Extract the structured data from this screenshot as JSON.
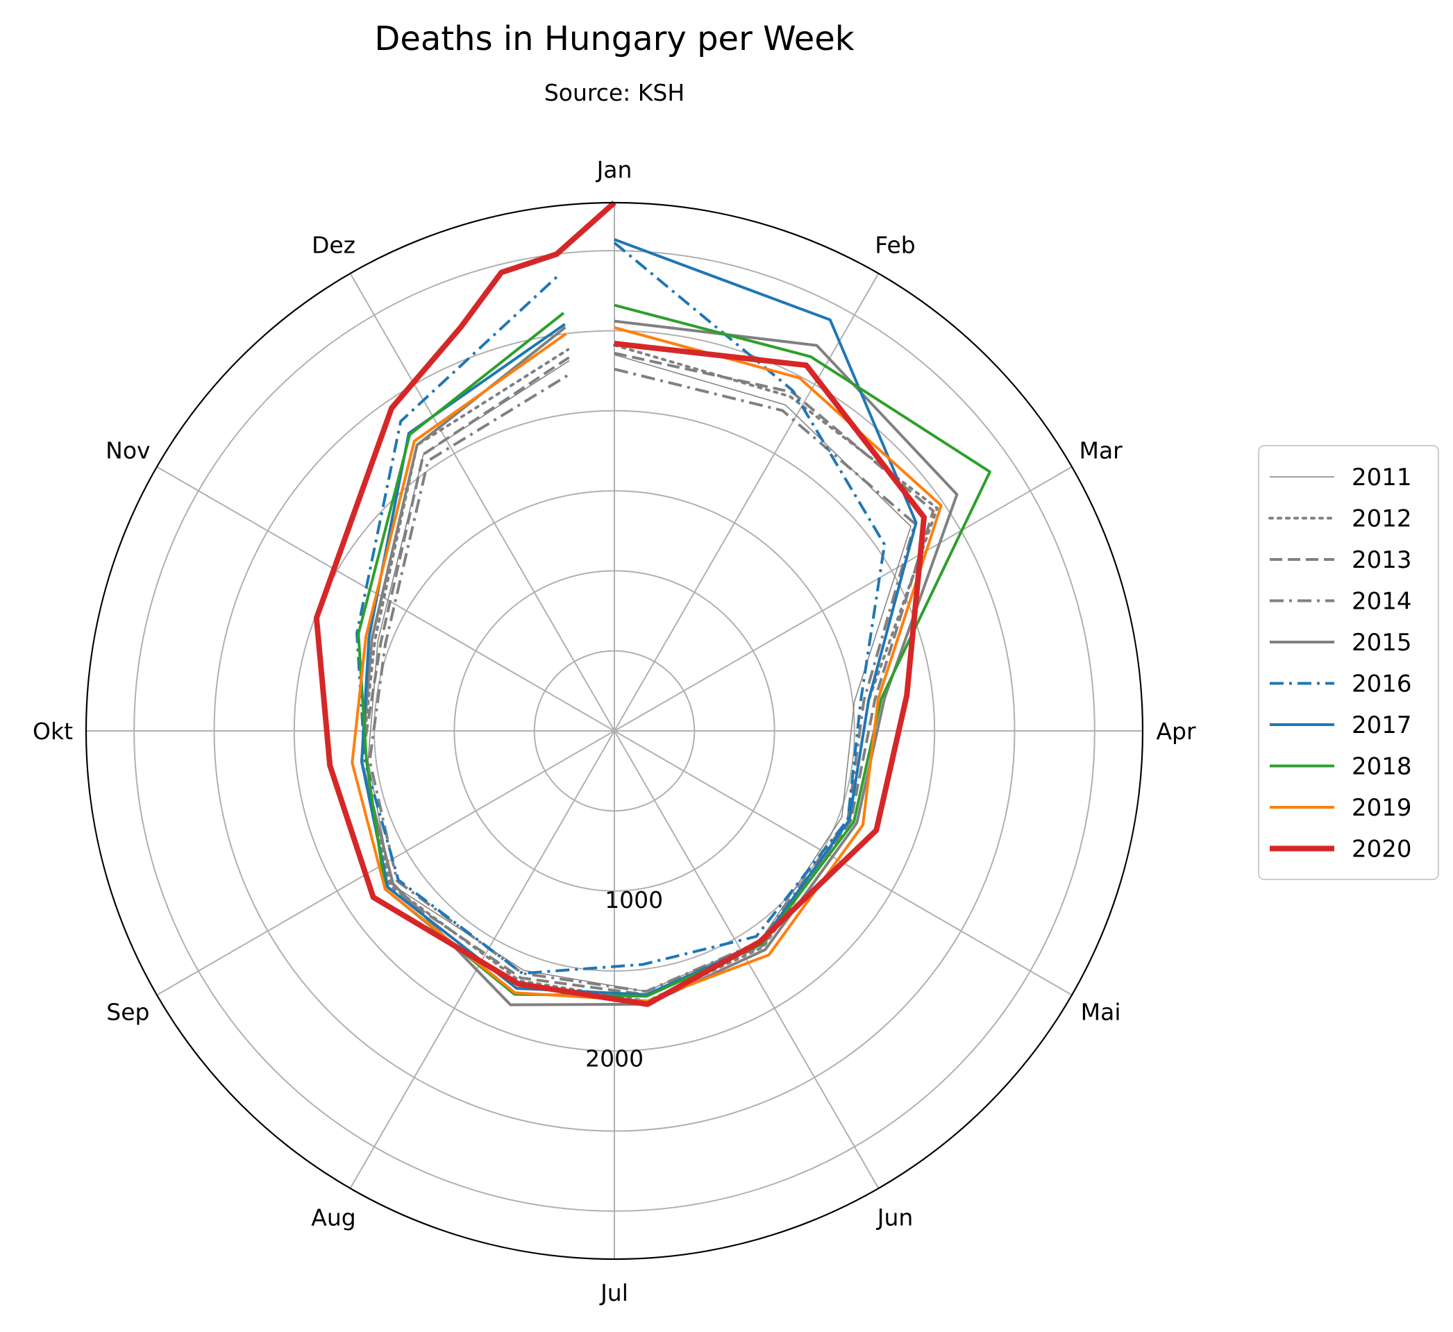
{
  "chart_data": {
    "type": "line",
    "projection": "polar",
    "title": "Deaths in Hungary per Week",
    "subtitle": "Source: KSH",
    "angular_ticks": [
      "Jan",
      "Feb",
      "Mar",
      "Apr",
      "Mai",
      "Jun",
      "Jul",
      "Aug",
      "Sep",
      "Okt",
      "Nov",
      "Dez"
    ],
    "radial_ticks": [
      {
        "value": 500,
        "label": ""
      },
      {
        "value": 1000,
        "label": "1000"
      },
      {
        "value": 1500,
        "label": ""
      },
      {
        "value": 2000,
        "label": "2000"
      },
      {
        "value": 2500,
        "label": ""
      },
      {
        "value": 3000,
        "label": ""
      }
    ],
    "rlim": [
      0,
      3300
    ],
    "grid": true,
    "legend_position": "right",
    "x_unit": "week of year",
    "y_unit": "deaths per week",
    "series": [
      {
        "name": "2011",
        "color": "#808080",
        "style": "thin",
        "x": [
          1,
          5,
          9,
          13,
          17,
          22,
          26,
          30,
          35,
          39,
          43,
          48,
          52
        ],
        "y": [
          2350,
          2300,
          2250,
          1510,
          1520,
          1600,
          1640,
          1600,
          1690,
          1550,
          1580,
          2100,
          2330
        ]
      },
      {
        "name": "2012",
        "color": "#808080",
        "style": "dotted",
        "x": [
          1,
          5,
          9,
          13,
          17,
          22,
          26,
          30,
          35,
          39,
          43,
          48,
          52
        ],
        "y": [
          2410,
          2360,
          2450,
          1600,
          1570,
          1640,
          1700,
          1670,
          1700,
          1590,
          1600,
          2170,
          2400
        ]
      },
      {
        "name": "2013",
        "color": "#808080",
        "style": "dashed",
        "x": [
          1,
          5,
          9,
          13,
          17,
          22,
          26,
          30,
          35,
          39,
          43,
          48,
          52
        ],
        "y": [
          2360,
          2390,
          2420,
          1640,
          1580,
          1630,
          1660,
          1650,
          1720,
          1590,
          1560,
          2100,
          2350
        ]
      },
      {
        "name": "2014",
        "color": "#808080",
        "style": "dashdot",
        "x": [
          1,
          5,
          9,
          13,
          17,
          22,
          26,
          30,
          35,
          39,
          43,
          48,
          52
        ],
        "y": [
          2260,
          2260,
          2280,
          1570,
          1560,
          1600,
          1640,
          1620,
          1650,
          1540,
          1530,
          2050,
          2250
        ]
      },
      {
        "name": "2015",
        "color": "#808080",
        "style": "solid",
        "x": [
          1,
          5,
          9,
          13,
          17,
          22,
          26,
          30,
          35,
          39,
          43,
          48,
          52
        ],
        "y": [
          2560,
          2720,
          2600,
          1700,
          1620,
          1660,
          1720,
          1830,
          1680,
          1590,
          1620,
          2170,
          2540
        ]
      },
      {
        "name": "2016",
        "color": "#1f77b4",
        "style": "dashdot",
        "x": [
          1,
          5,
          9,
          13,
          17,
          22,
          26,
          30,
          35,
          39,
          43,
          48,
          52
        ],
        "y": [
          3050,
          2400,
          2050,
          1550,
          1560,
          1560,
          1470,
          1620,
          1640,
          1570,
          1720,
          2350,
          2870
        ]
      },
      {
        "name": "2017",
        "color": "#1f77b4",
        "style": "solid",
        "x": [
          1,
          5,
          9,
          13,
          17,
          22,
          26,
          30,
          35,
          39,
          43,
          48,
          52
        ],
        "y": [
          3070,
          2900,
          2290,
          1600,
          1570,
          1610,
          1660,
          1720,
          1720,
          1590,
          1640,
          2260,
          2560
        ]
      },
      {
        "name": "2018",
        "color": "#2ca02c",
        "style": "solid",
        "x": [
          1,
          5,
          9,
          13,
          17,
          22,
          26,
          30,
          35,
          39,
          43,
          48,
          52
        ],
        "y": [
          2660,
          2640,
          2850,
          1680,
          1600,
          1620,
          1670,
          1760,
          1740,
          1560,
          1710,
          2250,
          2630
        ]
      },
      {
        "name": "2019",
        "color": "#ff7f0e",
        "style": "solid",
        "x": [
          1,
          5,
          9,
          13,
          17,
          22,
          26,
          30,
          35,
          39,
          43,
          48,
          52
        ],
        "y": [
          2520,
          2490,
          2480,
          1660,
          1660,
          1700,
          1700,
          1750,
          1740,
          1650,
          1660,
          2200,
          2500
        ]
      },
      {
        "name": "2020",
        "color": "#d62728",
        "style": "thick",
        "x": [
          1,
          5,
          9,
          13,
          17,
          22,
          26,
          30,
          35,
          39,
          43,
          48,
          50,
          51,
          52,
          53
        ],
        "y": [
          2420,
          2580,
          2350,
          1840,
          1750,
          1600,
          1720,
          1690,
          1830,
          1790,
          1990,
          2450,
          2700,
          2950,
          3000,
          3300
        ]
      }
    ]
  },
  "legend": {
    "labels": [
      "2011",
      "2012",
      "2013",
      "2014",
      "2015",
      "2016",
      "2017",
      "2018",
      "2019",
      "2020"
    ]
  }
}
